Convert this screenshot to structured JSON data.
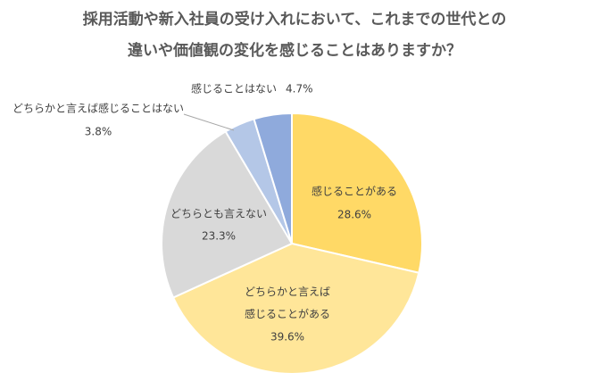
{
  "chart_data": {
    "type": "pie",
    "title": [
      "採用活動や新入社員の受け入れにおいて、これまでの世代との",
      "違いや価値観の変化を感じることはありますか？"
    ],
    "categories": [
      "感じることがある",
      "どちらかと言えば感じることがある",
      "どちらとも言えない",
      "どちらかと言えば感じることはない",
      "感じることはない"
    ],
    "values": [
      28.6,
      39.6,
      23.3,
      3.8,
      4.7
    ],
    "value_labels": [
      "28.6%",
      "39.6%",
      "23.3%",
      "3.8%",
      "4.7%"
    ],
    "colors": [
      "#FFD966",
      "#FFE699",
      "#D9D9D9",
      "#B4C7E7",
      "#8FAADC"
    ]
  }
}
